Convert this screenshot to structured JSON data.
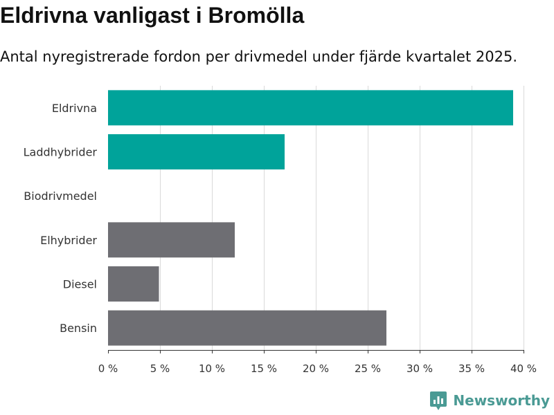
{
  "colors": {
    "highlight": "#00a39a",
    "base": "#6e6e73",
    "brand": "#4a9a94"
  },
  "brand": {
    "name": "Newsworthy"
  },
  "chart_data": {
    "type": "bar",
    "orientation": "horizontal",
    "title": "Eldrivna vanligast i Bromölla",
    "subtitle": "Antal nyregistrerade fordon per drivmedel under fjärde kvartalet 2025.",
    "categories": [
      "Eldrivna",
      "Laddhybrider",
      "Biodrivmedel",
      "Elhybrider",
      "Diesel",
      "Bensin"
    ],
    "values": [
      39,
      17,
      0,
      12.2,
      4.9,
      26.8
    ],
    "highlighted": [
      true,
      true,
      true,
      false,
      false,
      false
    ],
    "xlim": [
      0,
      40
    ],
    "xticks": [
      0,
      5,
      10,
      15,
      20,
      25,
      30,
      35,
      40
    ],
    "xtick_labels": [
      "0 %",
      "5 %",
      "10 %",
      "15 %",
      "20 %",
      "25 %",
      "30 %",
      "35 %",
      "40 %"
    ],
    "xlabel": "",
    "ylabel": "",
    "grid": true,
    "legend": "none"
  }
}
